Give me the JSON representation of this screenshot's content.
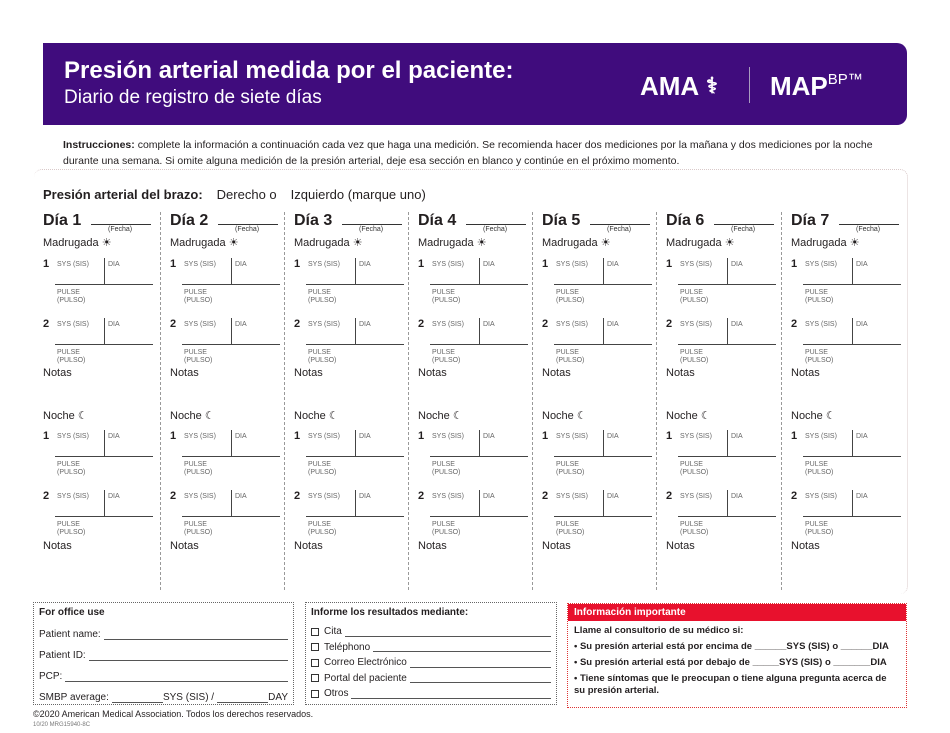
{
  "header": {
    "title": "Presión arterial medida por el paciente:",
    "subtitle": "Diario de registro de siete días",
    "logo_ama": "AMA",
    "logo_map": "MAP",
    "logo_bp": "BP™"
  },
  "instructions": {
    "label": "Instrucciones:",
    "text": " complete la información a continuación cada vez que haga una medición. Se recomienda hacer dos mediciones por la mañana y dos mediciones por la noche durante una semana. Si omite alguna medición de la presión arterial, deje esa sección en blanco y continúe en el próximo momento."
  },
  "arm": {
    "label": "Presión arterial del brazo:",
    "right": "Derecho o",
    "left": "Izquierdo (marque uno)"
  },
  "labels": {
    "fecha": "(Fecha)",
    "morning": "Madrugada",
    "night": "Noche",
    "sys": "SYS (SIS)",
    "dia": "DIA",
    "pulse": "PULSE",
    "pulso": "(PULSO)",
    "notes": "Notas",
    "one": "1",
    "two": "2"
  },
  "days": [
    "Día 1",
    "Día 2",
    "Día 3",
    "Día 4",
    "Día 5",
    "Día 6",
    "Día 7"
  ],
  "office": {
    "title": "For office use",
    "fields": [
      "Patient name:",
      "Patient ID:",
      "PCP:"
    ],
    "avg_label": "SMBP average:",
    "avg_sys": "SYS (SIS)  /",
    "avg_day": "DAY"
  },
  "report": {
    "title": "Informe los resultados mediante:",
    "options": [
      "Cita",
      "Teléphono",
      "Correo Electrónico",
      "Portal del paciente",
      "Otros"
    ]
  },
  "important": {
    "title": "Información importante",
    "intro": "Llame al consultorio de su médico si:",
    "items": [
      "• Su presión arterial está por encima de ______SYS (SIS) o ______DIA",
      "• Su presión arterial está por debajo de _____SYS (SIS) o _______DIA",
      "• Tiene síntomas que le preocupan o tiene alguna pregunta acerca de su presión arterial."
    ]
  },
  "footer": {
    "copyright": "©2020 American Medical Association. Todos los derechos reservados.",
    "code": "10/20  MRG15940-8C"
  },
  "colors": {
    "header": "#400c7d",
    "alert": "#e8112d"
  }
}
